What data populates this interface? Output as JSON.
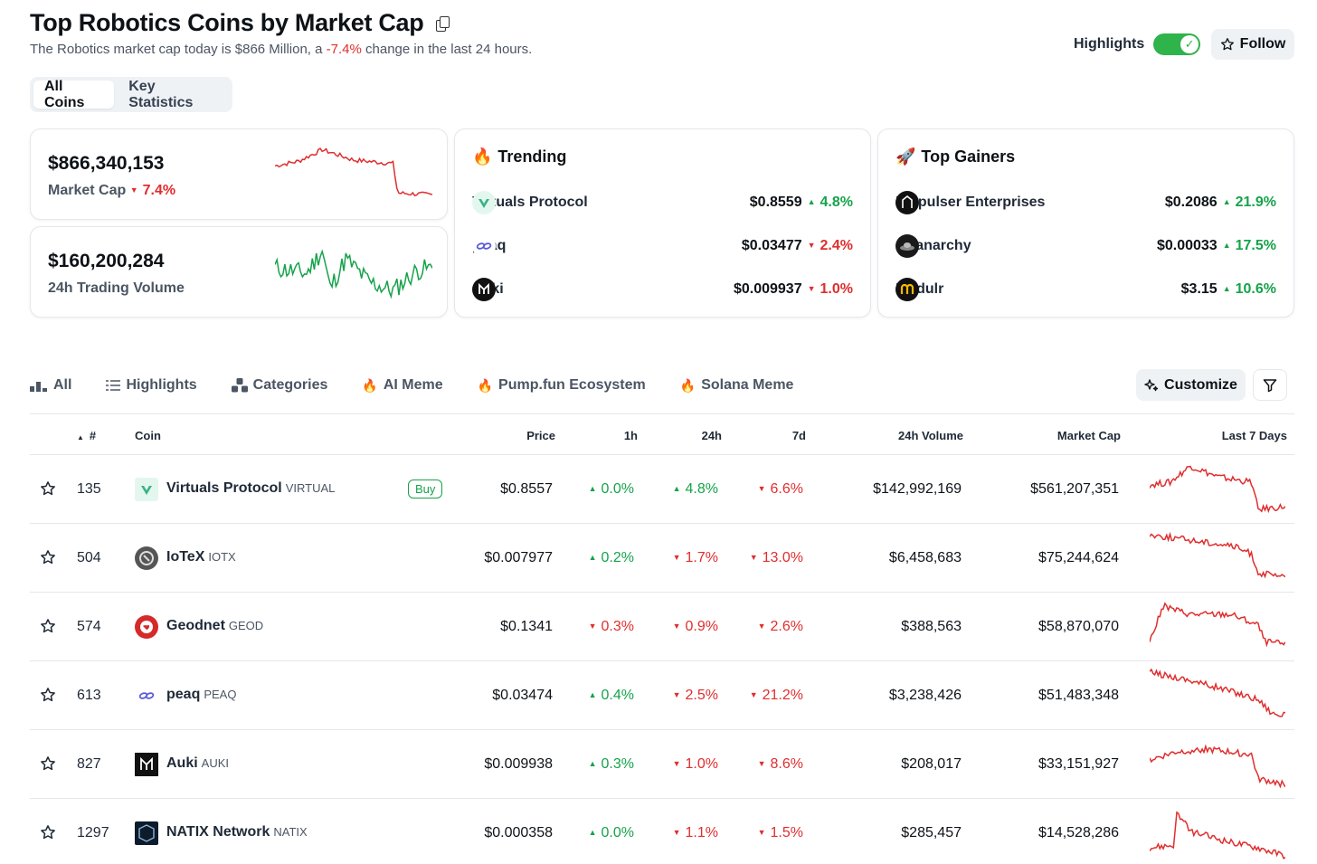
{
  "header": {
    "title": "Top Robotics Coins by Market Cap",
    "subtitle_pre": "The Robotics market cap today is $866 Million, a ",
    "subtitle_change": "-7.4%",
    "subtitle_post": " change in the last 24 hours.",
    "highlights_label": "Highlights",
    "highlights_on": true,
    "follow_label": "Follow"
  },
  "segment_tabs": [
    {
      "label": "All Coins",
      "active": true
    },
    {
      "label": "Key Statistics",
      "active": false
    }
  ],
  "stats": {
    "market_cap": {
      "value": "$866,340,153",
      "label": "Market Cap",
      "change": "7.4%",
      "direction": "down"
    },
    "volume": {
      "value": "$160,200,284",
      "label": "24h Trading Volume"
    }
  },
  "trending": {
    "title": "Trending",
    "icon": "fire-icon",
    "items": [
      {
        "name": "Virtuals Protocol",
        "price": "$0.8559",
        "change": "4.8%",
        "direction": "up"
      },
      {
        "name": "peaq",
        "price": "$0.03477",
        "change": "2.4%",
        "direction": "down"
      },
      {
        "name": "Auki",
        "price": "$0.009937",
        "change": "1.0%",
        "direction": "down"
      }
    ]
  },
  "top_gainers": {
    "title": "Top Gainers",
    "icon": "rocket-icon",
    "items": [
      {
        "name": "Empulser Enterprises",
        "price": "$0.2086",
        "change": "21.9%",
        "direction": "up"
      },
      {
        "name": "Opanarchy",
        "price": "$0.00033",
        "change": "17.5%",
        "direction": "up"
      },
      {
        "name": "Modulr",
        "price": "$3.15",
        "change": "10.6%",
        "direction": "up"
      }
    ]
  },
  "filter_tabs": [
    {
      "label": "All",
      "icon": "bar-chart-icon"
    },
    {
      "label": "Highlights",
      "icon": "list-icon"
    },
    {
      "label": "Categories",
      "icon": "categories-icon"
    },
    {
      "label": "AI Meme",
      "icon": "fire-icon"
    },
    {
      "label": "Pump.fun Ecosystem",
      "icon": "fire-icon"
    },
    {
      "label": "Solana Meme",
      "icon": "fire-icon"
    }
  ],
  "toolbar": {
    "customize_label": "Customize"
  },
  "table": {
    "columns": {
      "rank": "#",
      "coin": "Coin",
      "price": "Price",
      "h1": "1h",
      "h24": "24h",
      "d7": "7d",
      "volume": "24h Volume",
      "mcap": "Market Cap",
      "last7": "Last 7 Days"
    },
    "buy_label": "Buy",
    "rows": [
      {
        "rank": "135",
        "name": "Virtuals Protocol",
        "symbol": "VIRTUAL",
        "buy": true,
        "price": "$0.8557",
        "h1": "0.0%",
        "h1_dir": "up",
        "h24": "4.8%",
        "h24_dir": "up",
        "d7": "6.6%",
        "d7_dir": "down",
        "volume": "$142,992,169",
        "mcap": "$561,207,351"
      },
      {
        "rank": "504",
        "name": "IoTeX",
        "symbol": "IOTX",
        "buy": false,
        "price": "$0.007977",
        "h1": "0.2%",
        "h1_dir": "up",
        "h24": "1.7%",
        "h24_dir": "down",
        "d7": "13.0%",
        "d7_dir": "down",
        "volume": "$6,458,683",
        "mcap": "$75,244,624"
      },
      {
        "rank": "574",
        "name": "Geodnet",
        "symbol": "GEOD",
        "buy": false,
        "price": "$0.1341",
        "h1": "0.3%",
        "h1_dir": "down",
        "h24": "0.9%",
        "h24_dir": "down",
        "d7": "2.6%",
        "d7_dir": "down",
        "volume": "$388,563",
        "mcap": "$58,870,070"
      },
      {
        "rank": "613",
        "name": "peaq",
        "symbol": "PEAQ",
        "buy": false,
        "price": "$0.03474",
        "h1": "0.4%",
        "h1_dir": "up",
        "h24": "2.5%",
        "h24_dir": "down",
        "d7": "21.2%",
        "d7_dir": "down",
        "volume": "$3,238,426",
        "mcap": "$51,483,348"
      },
      {
        "rank": "827",
        "name": "Auki",
        "symbol": "AUKI",
        "buy": false,
        "price": "$0.009938",
        "h1": "0.3%",
        "h1_dir": "up",
        "h24": "1.0%",
        "h24_dir": "down",
        "d7": "8.6%",
        "d7_dir": "down",
        "volume": "$208,017",
        "mcap": "$33,151,927"
      },
      {
        "rank": "1297",
        "name": "NATIX Network",
        "symbol": "NATIX",
        "buy": false,
        "price": "$0.000358",
        "h1": "0.0%",
        "h1_dir": "up",
        "h24": "1.1%",
        "h24_dir": "down",
        "d7": "1.5%",
        "d7_dir": "down",
        "volume": "$285,457",
        "mcap": "$14,528,286"
      }
    ]
  },
  "colors": {
    "up": "#16a34a",
    "down": "#e02e2e",
    "toggle": "#2fb34b"
  }
}
